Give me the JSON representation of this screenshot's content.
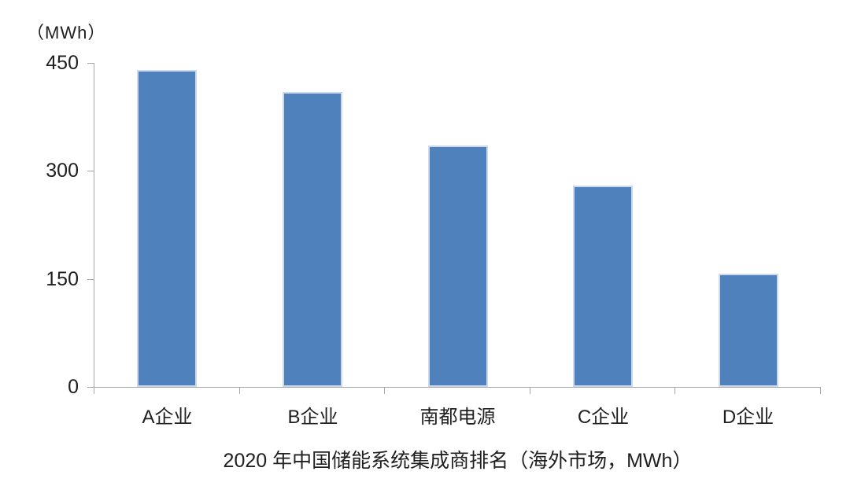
{
  "chart": {
    "unit_label": "（MWh）"
  },
  "chart_data": {
    "type": "bar",
    "title": "2020 年中国储能系统集成商排名（海外市场，MWh）",
    "categories": [
      "A企业",
      "B企业",
      "南都电源",
      "C企业",
      "D企业"
    ],
    "values": [
      440,
      410,
      335,
      280,
      157
    ],
    "xlabel": "",
    "ylabel": "（MWh）",
    "ylim": [
      0,
      450
    ],
    "yticks": [
      0,
      150,
      300,
      450
    ],
    "grid": false,
    "legend": null,
    "bar_color": "#4F81BD",
    "bar_edge_color": "#CCD9EC",
    "axis_color": "#A6A6A6",
    "text_color": "#1F1F1F",
    "background_color": "#FFFFFF"
  }
}
